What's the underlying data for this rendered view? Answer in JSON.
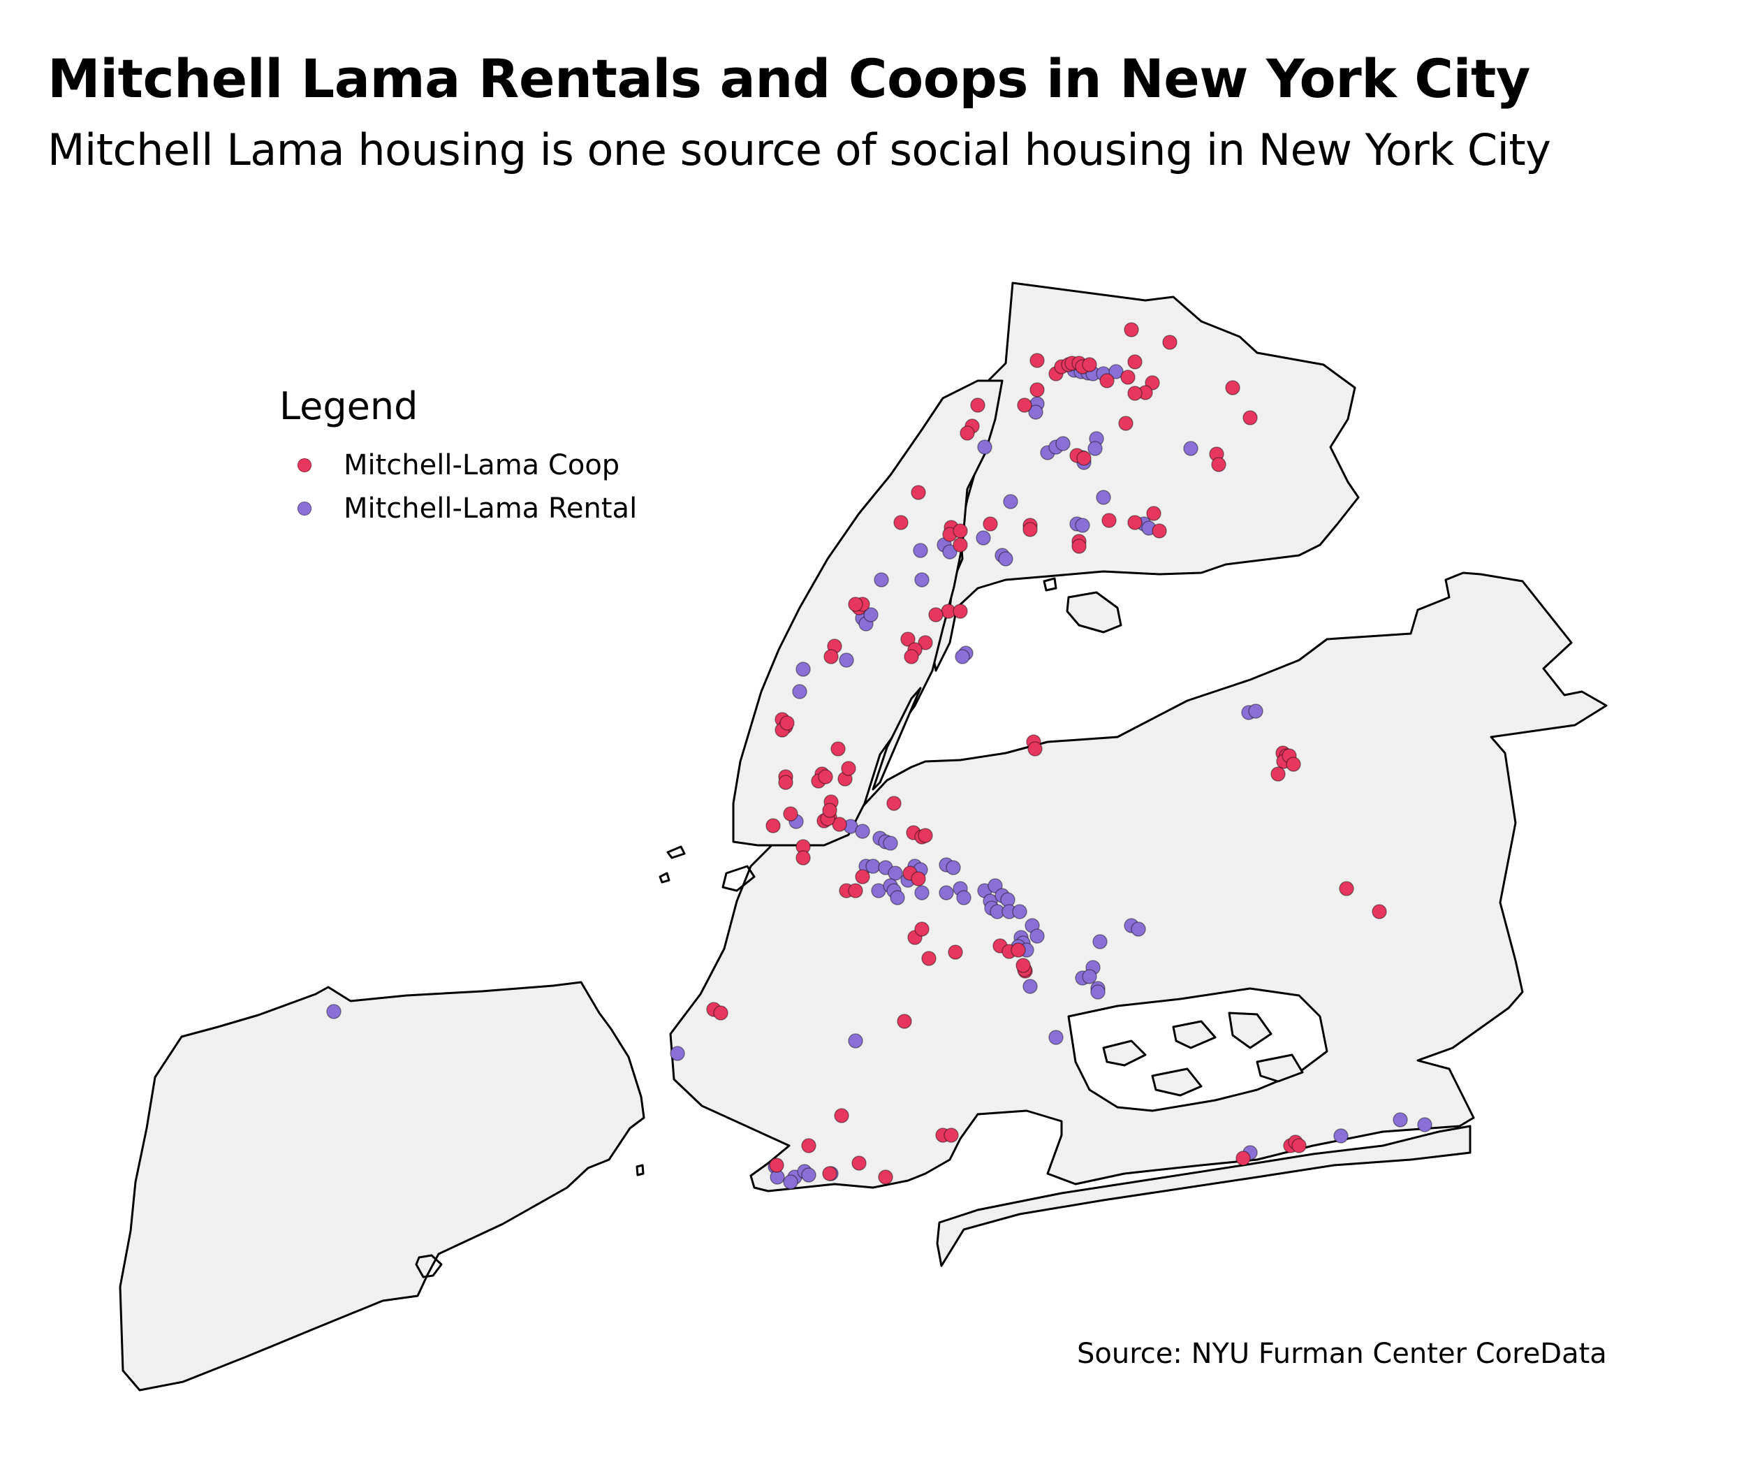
{
  "title": "Mitchell Lama Rentals and Coops in New York City",
  "subtitle": "Mitchell Lama housing is one source of social housing in New York City",
  "legend": {
    "title": "Legend",
    "items": [
      {
        "label": "Mitchell-Lama Coop",
        "color": "#e8375f"
      },
      {
        "label": "Mitchell-Lama Rental",
        "color": "#8a70d6"
      }
    ]
  },
  "source": "Source: NYU Furman Center CoreData",
  "colors": {
    "land": "#f0f0f0",
    "outline": "#000000",
    "coop": "#e8375f",
    "rental": "#8a70d6"
  },
  "map_data": {
    "type": "point-map",
    "area": "New York City",
    "series": [
      {
        "name": "Mitchell-Lama Coop",
        "count": 130
      },
      {
        "name": "Mitchell-Lama Rental",
        "count": 97
      }
    ]
  }
}
